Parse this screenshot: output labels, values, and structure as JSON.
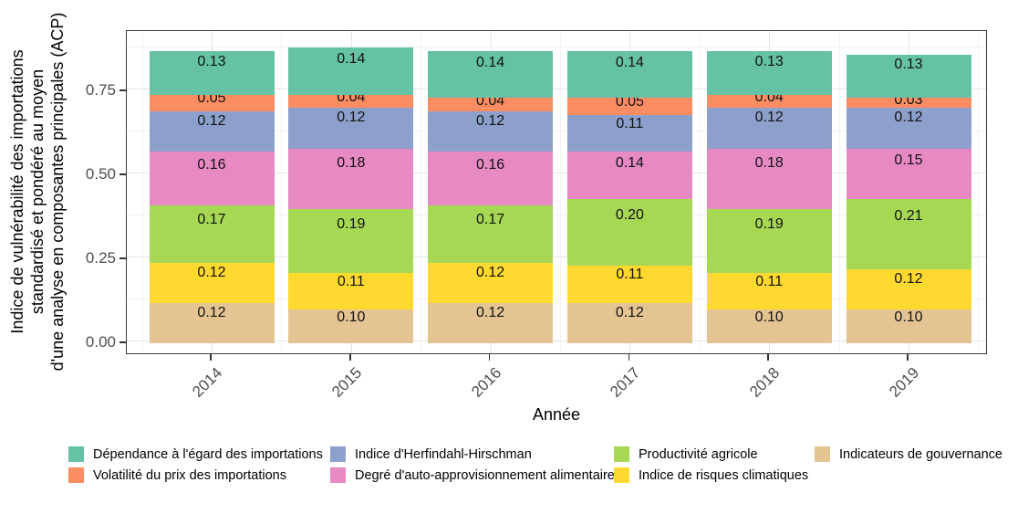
{
  "chart_data": {
    "type": "bar",
    "stacked": true,
    "title": "",
    "xlabel": "Année",
    "ylabel_lines": [
      "Indice de vulnérabilité des importations",
      "standardisé et pondéré au moyen",
      "d'une analyse en composantes principales (ACP)"
    ],
    "categories": [
      "2014",
      "2015",
      "2016",
      "2017",
      "2018",
      "2019"
    ],
    "series": [
      {
        "name": "Indicateurs de gouvernance",
        "color": "#E5C494",
        "values": [
          0.12,
          0.1,
          0.12,
          0.12,
          0.1,
          0.1
        ]
      },
      {
        "name": "Indice de risques climatiques",
        "color": "#FFD92F",
        "values": [
          0.12,
          0.11,
          0.12,
          0.11,
          0.11,
          0.12
        ]
      },
      {
        "name": "Productivité agricole",
        "color": "#A6D854",
        "values": [
          0.17,
          0.19,
          0.17,
          0.2,
          0.19,
          0.21
        ]
      },
      {
        "name": "Degré d'auto-approvisionnement alimentaire",
        "color": "#E78AC3",
        "values": [
          0.16,
          0.18,
          0.16,
          0.14,
          0.18,
          0.15
        ]
      },
      {
        "name": "Indice d'Herfindahl-Hirschman",
        "color": "#8DA0CB",
        "values": [
          0.12,
          0.12,
          0.12,
          0.11,
          0.12,
          0.12
        ]
      },
      {
        "name": "Volatilité du prix des importations",
        "color": "#FC8D62",
        "values": [
          0.05,
          0.04,
          0.04,
          0.05,
          0.04,
          0.03
        ]
      },
      {
        "name": "Dépendance à l'égard des importations",
        "color": "#66C2A5",
        "values": [
          0.13,
          0.14,
          0.14,
          0.14,
          0.13,
          0.13
        ]
      }
    ],
    "bar_value_labels": true,
    "value_label_format": "0.00",
    "yticks": [
      {
        "value": 0.0,
        "label": "0.00"
      },
      {
        "value": 0.25,
        "label": "0.25"
      },
      {
        "value": 0.5,
        "label": "0.50"
      },
      {
        "value": 0.75,
        "label": "0.75"
      }
    ],
    "yminor": [
      0.125,
      0.375,
      0.625,
      0.875
    ],
    "ylim": [
      0,
      0.93
    ],
    "grid": "major-and-minor",
    "legend_position": "bottom",
    "legend_columns": [
      [
        6,
        5
      ],
      [
        4,
        3
      ],
      [
        2,
        1
      ],
      [
        0
      ]
    ]
  }
}
